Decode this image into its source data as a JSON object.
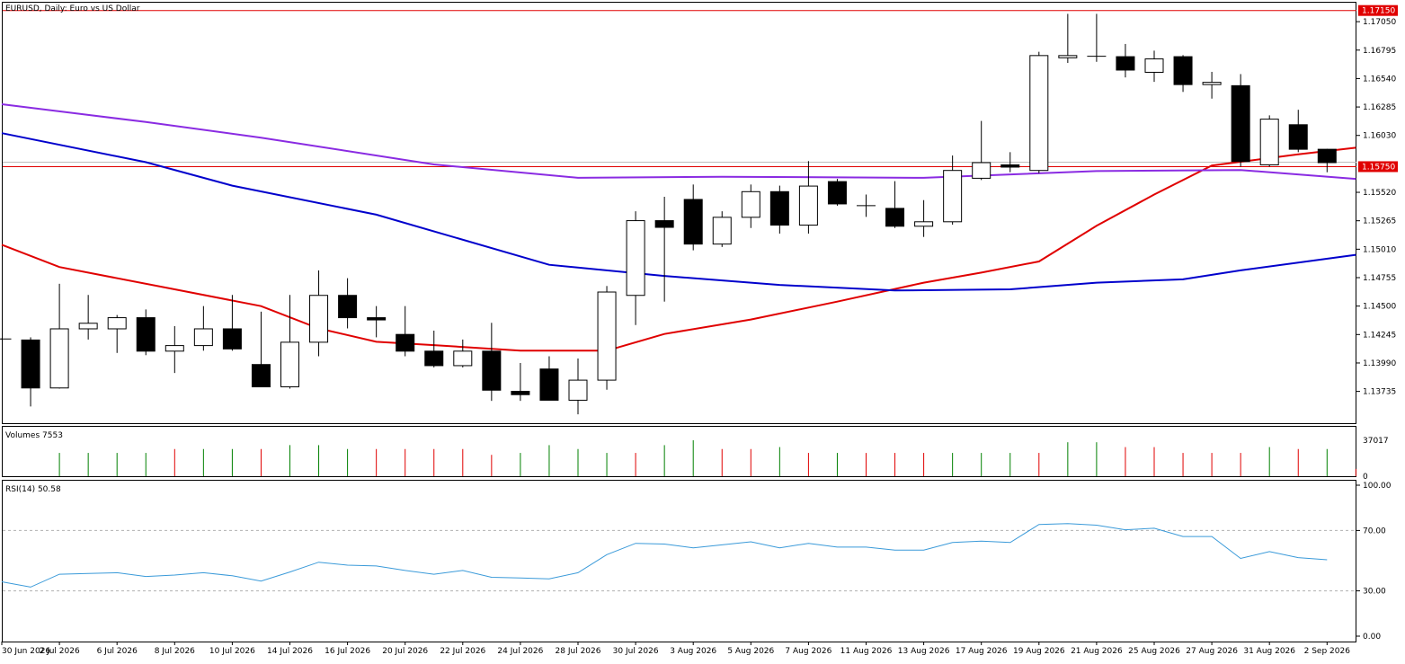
{
  "header": {
    "symbol_title": "EURUSD, Daily:  Euro vs US Dollar",
    "volumes_label": "Volumes 7553",
    "rsi_label": "RSI(14) 50.58"
  },
  "colors": {
    "bull_body": "#ffffff",
    "bear_body": "#000000",
    "ma_fast": "#e00000",
    "ma_mid": "#0000cc",
    "ma_slow": "#8a2be2",
    "rsi_line": "#3a9ad9",
    "vol_up": "#008000",
    "vol_down": "#e00000",
    "hline": "#e00000",
    "price_label_bg": "#e00000"
  },
  "chart_data": [
    {
      "type": "candlestick",
      "title": "EURUSD, Daily:  Euro vs US Dollar",
      "ylim": [
        1.1345,
        1.1722
      ],
      "price_ticks": [
        "1.17050",
        "1.16795",
        "1.16540",
        "1.16285",
        "1.16030",
        "1.15520",
        "1.15265",
        "1.15010",
        "1.14755",
        "1.14500",
        "1.14245",
        "1.13990",
        "1.13735"
      ],
      "x_tick_labels": [
        "30 Jun 2026",
        "2 Jul 2026",
        "6 Jul 2026",
        "8 Jul 2026",
        "10 Jul 2026",
        "14 Jul 2026",
        "16 Jul 2026",
        "20 Jul 2026",
        "22 Jul 2026",
        "24 Jul 2026",
        "28 Jul 2026",
        "30 Jul 2026",
        "3 Aug 2026",
        "5 Aug 2026",
        "7 Aug 2026",
        "11 Aug 2026",
        "13 Aug 2026",
        "17 Aug 2026",
        "19 Aug 2026",
        "21 Aug 2026",
        "25 Aug 2026",
        "27 Aug 2026",
        "31 Aug 2026",
        "2 Sep 2026"
      ],
      "horizontal_lines": [
        {
          "value": 1.1715,
          "label": "1.17150"
        },
        {
          "value": 1.1575,
          "label": "1.15750"
        }
      ],
      "candles": [
        {
          "date": "30 Jun 2026",
          "o": 1.14205,
          "h": 1.1421,
          "l": 1.142,
          "c": 1.14205
        },
        {
          "date": "1 Jul 2026",
          "o": 1.142,
          "h": 1.1422,
          "l": 1.136,
          "c": 1.1377
        },
        {
          "date": "2 Jul 2026",
          "o": 1.1377,
          "h": 1.147,
          "l": 1.1376,
          "c": 1.143
        },
        {
          "date": "3 Jul 2026",
          "o": 1.143,
          "h": 1.146,
          "l": 1.142,
          "c": 1.1435
        },
        {
          "date": "6 Jul 2026",
          "o": 1.143,
          "h": 1.1442,
          "l": 1.1408,
          "c": 1.144
        },
        {
          "date": "7 Jul 2026",
          "o": 1.144,
          "h": 1.1447,
          "l": 1.1406,
          "c": 1.141
        },
        {
          "date": "8 Jul 2026",
          "o": 1.141,
          "h": 1.1432,
          "l": 1.139,
          "c": 1.1415
        },
        {
          "date": "9 Jul 2026",
          "o": 1.1415,
          "h": 1.145,
          "l": 1.141,
          "c": 1.143
        },
        {
          "date": "10 Jul 2026",
          "o": 1.143,
          "h": 1.146,
          "l": 1.141,
          "c": 1.1412
        },
        {
          "date": "13 Jul 2026",
          "o": 1.1398,
          "h": 1.1445,
          "l": 1.1378,
          "c": 1.1378
        },
        {
          "date": "14 Jul 2026",
          "o": 1.1378,
          "h": 1.146,
          "l": 1.1376,
          "c": 1.1418
        },
        {
          "date": "15 Jul 2026",
          "o": 1.1418,
          "h": 1.1482,
          "l": 1.1405,
          "c": 1.146
        },
        {
          "date": "16 Jul 2026",
          "o": 1.146,
          "h": 1.1475,
          "l": 1.143,
          "c": 1.144
        },
        {
          "date": "17 Jul 2026",
          "o": 1.144,
          "h": 1.145,
          "l": 1.1422,
          "c": 1.1438
        },
        {
          "date": "20 Jul 2026",
          "o": 1.1425,
          "h": 1.145,
          "l": 1.1405,
          "c": 1.141
        },
        {
          "date": "21 Jul 2026",
          "o": 1.141,
          "h": 1.1428,
          "l": 1.1395,
          "c": 1.1397
        },
        {
          "date": "22 Jul 2026",
          "o": 1.1397,
          "h": 1.142,
          "l": 1.1395,
          "c": 1.141
        },
        {
          "date": "23 Jul 2026",
          "o": 1.141,
          "h": 1.1435,
          "l": 1.1365,
          "c": 1.1375
        },
        {
          "date": "24 Jul 2026",
          "o": 1.1374,
          "h": 1.1399,
          "l": 1.1365,
          "c": 1.1371
        },
        {
          "date": "27 Jul 2026",
          "o": 1.1394,
          "h": 1.1405,
          "l": 1.1366,
          "c": 1.1366
        },
        {
          "date": "28 Jul 2026",
          "o": 1.1366,
          "h": 1.1403,
          "l": 1.1353,
          "c": 1.1384
        },
        {
          "date": "29 Jul 2026",
          "o": 1.1384,
          "h": 1.1468,
          "l": 1.1375,
          "c": 1.1463
        },
        {
          "date": "30 Jul 2026",
          "o": 1.146,
          "h": 1.1535,
          "l": 1.1433,
          "c": 1.1527
        },
        {
          "date": "31 Jul 2026",
          "o": 1.1527,
          "h": 1.1548,
          "l": 1.1454,
          "c": 1.1521
        },
        {
          "date": "3 Aug 2026",
          "o": 1.1546,
          "h": 1.1559,
          "l": 1.15,
          "c": 1.1506
        },
        {
          "date": "4 Aug 2026",
          "o": 1.1506,
          "h": 1.1535,
          "l": 1.1503,
          "c": 1.153
        },
        {
          "date": "5 Aug 2026",
          "o": 1.153,
          "h": 1.1559,
          "l": 1.152,
          "c": 1.1553
        },
        {
          "date": "6 Aug 2026",
          "o": 1.1553,
          "h": 1.1558,
          "l": 1.1515,
          "c": 1.1523
        },
        {
          "date": "7 Aug 2026",
          "o": 1.1523,
          "h": 1.158,
          "l": 1.1515,
          "c": 1.1558
        },
        {
          "date": "10 Aug 2026",
          "o": 1.1562,
          "h": 1.1564,
          "l": 1.154,
          "c": 1.1542
        },
        {
          "date": "11 Aug 2026",
          "o": 1.154,
          "h": 1.155,
          "l": 1.153,
          "c": 1.154
        },
        {
          "date": "12 Aug 2026",
          "o": 1.1538,
          "h": 1.1562,
          "l": 1.152,
          "c": 1.1522
        },
        {
          "date": "13 Aug 2026",
          "o": 1.1522,
          "h": 1.1545,
          "l": 1.1512,
          "c": 1.1526
        },
        {
          "date": "14 Aug 2026",
          "o": 1.1526,
          "h": 1.1585,
          "l": 1.1523,
          "c": 1.1572
        },
        {
          "date": "17 Aug 2026",
          "o": 1.1565,
          "h": 1.1616,
          "l": 1.1563,
          "c": 1.1579
        },
        {
          "date": "18 Aug 2026",
          "o": 1.1577,
          "h": 1.1588,
          "l": 1.157,
          "c": 1.1575
        },
        {
          "date": "19 Aug 2026",
          "o": 1.1572,
          "h": 1.1678,
          "l": 1.1569,
          "c": 1.1675
        },
        {
          "date": "20 Aug 2026",
          "o": 1.1673,
          "h": 1.1712,
          "l": 1.1668,
          "c": 1.1675
        },
        {
          "date": "21 Aug 2026",
          "o": 1.1674,
          "h": 1.1712,
          "l": 1.1669,
          "c": 1.1674
        },
        {
          "date": "24 Aug 2026",
          "o": 1.1674,
          "h": 1.1685,
          "l": 1.1655,
          "c": 1.1662
        },
        {
          "date": "25 Aug 2026",
          "o": 1.166,
          "h": 1.1679,
          "l": 1.1651,
          "c": 1.1672
        },
        {
          "date": "26 Aug 2026",
          "o": 1.1674,
          "h": 1.1675,
          "l": 1.1642,
          "c": 1.1649
        },
        {
          "date": "27 Aug 2026",
          "o": 1.1649,
          "h": 1.166,
          "l": 1.1636,
          "c": 1.1651
        },
        {
          "date": "28 Aug 2026",
          "o": 1.1648,
          "h": 1.1658,
          "l": 1.1575,
          "c": 1.158
        },
        {
          "date": "31 Aug 2026",
          "o": 1.1577,
          "h": 1.1621,
          "l": 1.1575,
          "c": 1.1618
        },
        {
          "date": "1 Sep 2026",
          "o": 1.1613,
          "h": 1.1626,
          "l": 1.1588,
          "c": 1.1591
        },
        {
          "date": "2 Sep 2026",
          "o": 1.1591,
          "h": 1.1591,
          "l": 1.157,
          "c": 1.1579
        }
      ],
      "moving_averages": [
        {
          "key": "ma_fast",
          "points": [
            [
              0,
              1.1505
            ],
            [
              2,
              1.1485
            ],
            [
              6,
              1.1465
            ],
            [
              9,
              1.145
            ],
            [
              11,
              1.143
            ],
            [
              13,
              1.1418
            ],
            [
              15,
              1.1415
            ],
            [
              18,
              1.141
            ],
            [
              21,
              1.141
            ],
            [
              23,
              1.1425
            ],
            [
              26,
              1.1438
            ],
            [
              29,
              1.1454
            ],
            [
              32,
              1.1471
            ],
            [
              34,
              1.148
            ],
            [
              36,
              1.149
            ],
            [
              38,
              1.1522
            ],
            [
              40,
              1.155
            ],
            [
              42,
              1.1576
            ],
            [
              45,
              1.1586
            ],
            [
              47,
              1.1592
            ]
          ]
        },
        {
          "key": "ma_mid",
          "points": [
            [
              0,
              1.1605
            ],
            [
              5,
              1.1579
            ],
            [
              8,
              1.1558
            ],
            [
              13,
              1.1532
            ],
            [
              19,
              1.1487
            ],
            [
              23,
              1.1477
            ],
            [
              27,
              1.1469
            ],
            [
              31,
              1.1464
            ],
            [
              35,
              1.1465
            ],
            [
              38,
              1.1471
            ],
            [
              41,
              1.1474
            ],
            [
              43,
              1.1482
            ],
            [
              47,
              1.1496
            ]
          ]
        },
        {
          "key": "ma_slow",
          "points": [
            [
              0,
              1.1631
            ],
            [
              5,
              1.1615
            ],
            [
              9,
              1.1601
            ],
            [
              15,
              1.1577
            ],
            [
              20,
              1.1565
            ],
            [
              25,
              1.1566
            ],
            [
              32,
              1.1565
            ],
            [
              38,
              1.1571
            ],
            [
              43,
              1.1572
            ],
            [
              47,
              1.1564
            ]
          ]
        }
      ]
    },
    {
      "type": "bar",
      "title": "Volumes 7553",
      "ylim": [
        0,
        37017
      ],
      "y_ticks": [
        "37017",
        "0"
      ],
      "values": [
        0,
        24000,
        24000,
        24000,
        24000,
        28000,
        28000,
        28000,
        28000,
        32000,
        32000,
        28000,
        28000,
        28000,
        28000,
        28000,
        22000,
        24000,
        32000,
        28000,
        24000,
        24000,
        32000,
        37017,
        28000,
        28000,
        30000,
        24000,
        24000,
        24000,
        24000,
        24000,
        24000,
        24000,
        24000,
        24000,
        35000,
        35000,
        30000,
        30000,
        24000,
        24000,
        24000,
        30000,
        28000,
        28000,
        7553
      ],
      "directions": [
        "up",
        "up",
        "up",
        "up",
        "up",
        "down",
        "up",
        "up",
        "down",
        "up",
        "up",
        "up",
        "down",
        "down",
        "down",
        "down",
        "down",
        "up",
        "up",
        "up",
        "up",
        "down",
        "up",
        "up",
        "down",
        "down",
        "up",
        "down",
        "up",
        "down",
        "down",
        "down",
        "up",
        "up",
        "up",
        "down",
        "up",
        "up",
        "down",
        "down",
        "down",
        "down",
        "down",
        "up",
        "down",
        "up",
        "down"
      ]
    },
    {
      "type": "line",
      "title": "RSI(14) 50.58",
      "ylim": [
        0,
        100
      ],
      "y_ticks": [
        "100.00",
        "70.00",
        "30.00",
        "0.00"
      ],
      "levels": [
        70,
        30
      ],
      "values": [
        36.0,
        32.5,
        41.0,
        41.5,
        42.0,
        39.5,
        40.5,
        42.0,
        40.0,
        36.5,
        42.5,
        49.0,
        47.0,
        46.5,
        43.5,
        41.0,
        43.5,
        39.0,
        38.5,
        38.0,
        42.0,
        54.0,
        61.5,
        61.0,
        58.5,
        60.5,
        62.5,
        58.5,
        61.5,
        59.0,
        59.0,
        57.0,
        57.0,
        62.0,
        63.0,
        62.0,
        74.0,
        74.5,
        73.5,
        70.5,
        71.5,
        66.0,
        66.0,
        51.5,
        56.0,
        52.0,
        50.58
      ]
    }
  ]
}
